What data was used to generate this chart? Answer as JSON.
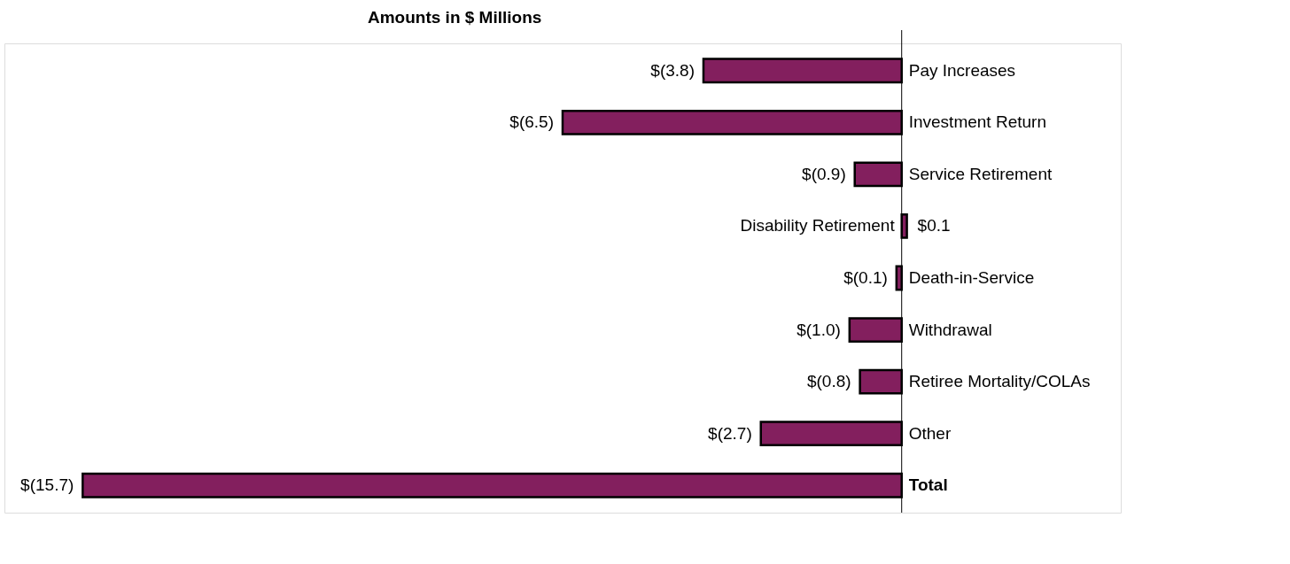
{
  "chart_data": {
    "type": "bar",
    "orientation": "horizontal",
    "title": "Amounts in $ Millions",
    "categories": [
      "Pay Increases",
      "Investment Return",
      "Service Retirement",
      "Disability Retirement",
      "Death-in-Service",
      "Withdrawal",
      "Retiree Mortality/COLAs",
      "Other",
      "Total"
    ],
    "values": [
      -3.8,
      -6.5,
      -0.9,
      0.1,
      -0.1,
      -1.0,
      -0.8,
      -2.7,
      -15.7
    ],
    "value_labels": [
      "$(3.8)",
      "$(6.5)",
      "$(0.9)",
      "$0.1",
      "$(0.1)",
      "$(1.0)",
      "$(0.8)",
      "$(2.7)",
      "$(15.7)"
    ],
    "color": "#831f5e",
    "xlim": [
      -17.2,
      4.2
    ],
    "grid": false
  }
}
